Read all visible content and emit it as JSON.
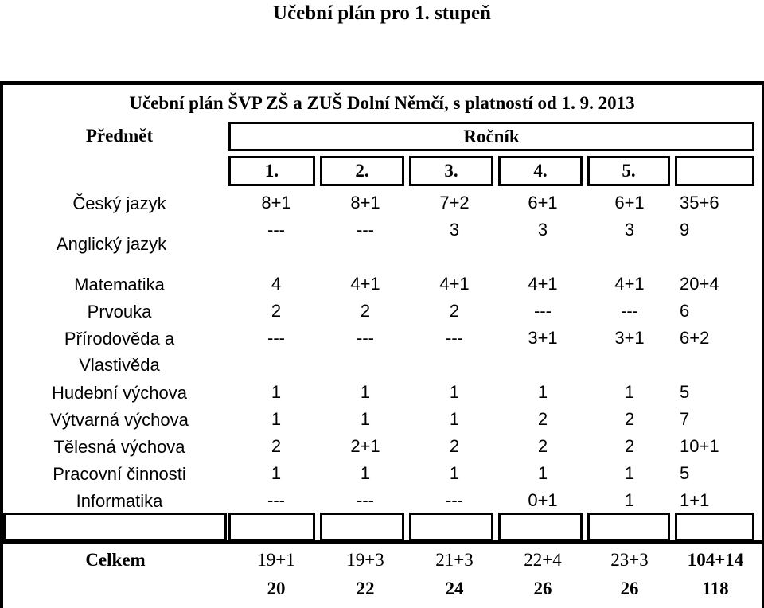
{
  "page_title": "Učební plán pro 1. stupeň",
  "table": {
    "caption": "Učební plán ŠVP ZŠ a ZUŠ Dolní Němčí, s platností od 1. 9. 2013",
    "subject_header": "Předmět",
    "grade_header": "Ročník",
    "grades": [
      "1.",
      "2.",
      "3.",
      "4.",
      "5."
    ],
    "rows": [
      {
        "subject": "Český jazyk",
        "values": [
          "8+1",
          "8+1",
          "7+2",
          "6+1",
          "6+1",
          "35+6"
        ]
      },
      {
        "subject": "Anglický jazyk",
        "values": [
          "---",
          "---",
          "3",
          "3",
          "3",
          "9"
        ]
      },
      {
        "subject": "Matematika",
        "values": [
          "4",
          "4+1",
          "4+1",
          "4+1",
          "4+1",
          "20+4"
        ]
      },
      {
        "subject": "Prvouka",
        "values": [
          "2",
          "2",
          "2",
          "---",
          "---",
          "6"
        ]
      },
      {
        "subject": "Přírodověda a Vlastivěda",
        "values": [
          "---",
          "---",
          "---",
          "3+1",
          "3+1",
          "6+2"
        ]
      },
      {
        "subject": "Hudební výchova",
        "values": [
          "1",
          "1",
          "1",
          "1",
          "1",
          "5"
        ]
      },
      {
        "subject": "Výtvarná výchova",
        "values": [
          "1",
          "1",
          "1",
          "2",
          "2",
          "7"
        ]
      },
      {
        "subject": "Tělesná výchova",
        "values": [
          "2",
          "2+1",
          "2",
          "2",
          "2",
          "10+1"
        ]
      },
      {
        "subject": "Pracovní činnosti",
        "values": [
          "1",
          "1",
          "1",
          "1",
          "1",
          "5"
        ]
      },
      {
        "subject": "Informatika",
        "values": [
          "---",
          "---",
          "---",
          "0+1",
          "1",
          "1+1"
        ]
      }
    ],
    "total_label": "Celkem",
    "totals": [
      "19+1",
      "19+3",
      "21+3",
      "22+4",
      "23+3",
      "104+14"
    ],
    "totals_sum": [
      "20",
      "22",
      "24",
      "26",
      "26",
      "118"
    ]
  }
}
